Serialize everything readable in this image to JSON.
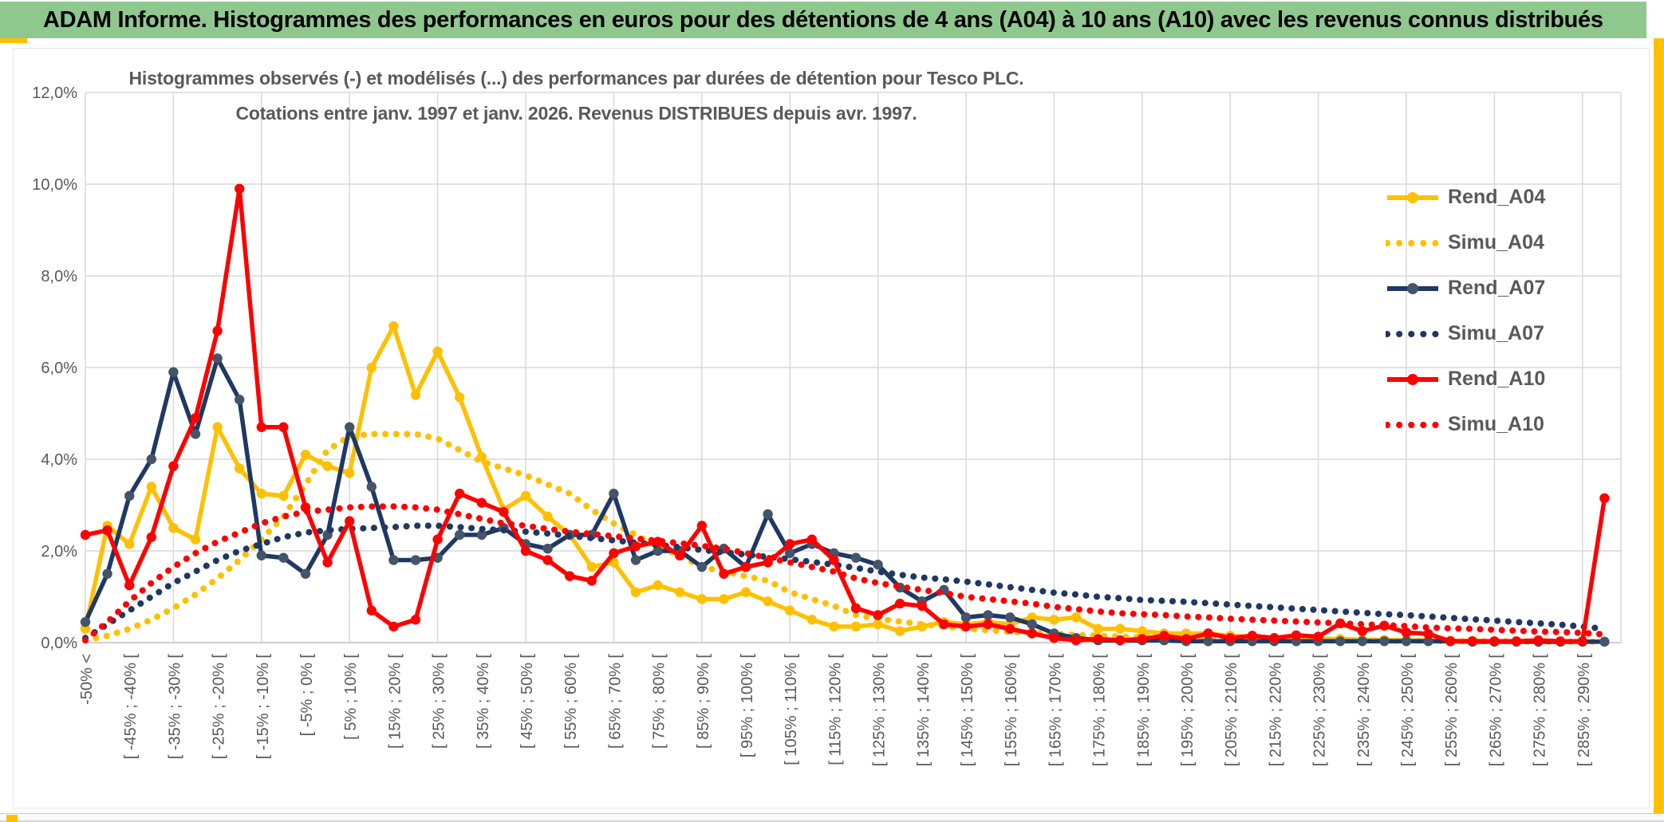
{
  "window": {
    "title_bar": "ADAM Informe. Histogrammes des performances en euros pour des détentions de 4 ans (A04) à 10 ans (A10) avec les revenus connus distribués",
    "title_bar_color": "#8FC88F",
    "accent_color": "#FFC000"
  },
  "chart": {
    "title_line1": "Histogrammes observés (-) et modélisés (...) des performances par durées de détention pour Tesco PLC.",
    "title_line2": "Cotations entre janv. 1997 et janv. 2026. Revenus DISTRIBUES depuis avr. 1997.",
    "text_color": "#595959"
  },
  "chart_data": {
    "type": "line",
    "title": "Histogrammes observés (-) et modélisés (...) des performances par durées de détention pour Tesco PLC. Cotations entre janv. 1997 et janv. 2026. Revenus DISTRIBUES depuis avr. 1997.",
    "ylabel": "",
    "xlabel": "",
    "ylim": [
      0,
      12
    ],
    "grid": true,
    "legend_position": "right",
    "y_tick_labels": [
      "12,0%",
      "10,0%",
      "8,0%",
      "6,0%",
      "4,0%",
      "2,0%",
      "0,0%"
    ],
    "y_tick_values": [
      12,
      10,
      8,
      6,
      4,
      2,
      0
    ],
    "x_bin_count": 70,
    "x_tick_labels_every_other_bin": [
      "-50% <",
      "[ -45% ; -40% [",
      "[ -35% ; -30% [",
      "[ -25% ; -20% [",
      "[ -15% ; -10% [",
      "[ -5% ; 0% [",
      "[ 5% ; 10% [",
      "[ 15% ; 20% [",
      "[ 25% ; 30% [",
      "[ 35% ; 40% [",
      "[ 45% ; 50% [",
      "[ 55% ; 60% [",
      "[ 65% ; 70% [",
      "[ 75% ; 80% [",
      "[ 85% ; 90% [",
      "[ 95% ; 100% [",
      "[ 105% ; 110% [",
      "[ 115% ; 120% [",
      "[ 125% ; 130% [",
      "[ 135% ; 140% [",
      "[ 145% ; 150% [",
      "[ 155% ; 160% [",
      "[ 165% ; 170% [",
      "[ 175% ; 180% [",
      "[ 185% ; 190% [",
      "[ 195% ; 200% [",
      "[ 205% ; 210% [",
      "[ 215% ; 220% [",
      "[ 225% ; 230% [",
      "[ 235% ; 240% [",
      "[ 245% ; 250% [",
      "[ 255% ; 260% [",
      "[ 265% ; 270% [",
      "[ 275% ; 280% [",
      "[ 285% ; 290% ["
    ],
    "series": [
      {
        "name": "Rend_A04",
        "style": "solid",
        "color": "#FFC000",
        "marker_color": "#FFC000",
        "values": [
          0.3,
          2.55,
          2.15,
          3.4,
          2.5,
          2.25,
          4.7,
          3.8,
          3.25,
          3.2,
          4.1,
          3.85,
          3.7,
          6.0,
          6.9,
          5.4,
          6.35,
          5.35,
          4.05,
          2.9,
          3.2,
          2.75,
          2.35,
          1.65,
          1.75,
          1.1,
          1.25,
          1.1,
          0.95,
          0.95,
          1.1,
          0.9,
          0.7,
          0.5,
          0.35,
          0.35,
          0.4,
          0.25,
          0.35,
          0.45,
          0.4,
          0.45,
          0.4,
          0.55,
          0.5,
          0.55,
          0.3,
          0.3,
          0.25,
          0.2,
          0.2,
          0.2,
          0.15,
          0.12,
          0.1,
          0.1,
          0.08,
          0.08,
          0.06,
          0.06,
          0.05,
          0.05,
          0.04,
          0.04,
          0.03,
          0.03,
          0.03,
          0.02,
          0.02,
          0.02
        ]
      },
      {
        "name": "Simu_A04",
        "style": "dotted",
        "color": "#FFC000",
        "values": [
          0.05,
          0.15,
          0.3,
          0.5,
          0.75,
          1.05,
          1.4,
          1.8,
          2.25,
          2.75,
          3.45,
          4.2,
          4.5,
          4.55,
          4.55,
          4.55,
          4.45,
          4.2,
          3.95,
          3.8,
          3.65,
          3.45,
          3.25,
          2.9,
          2.6,
          2.35,
          2.1,
          1.9,
          1.65,
          1.55,
          1.45,
          1.35,
          1.1,
          0.95,
          0.8,
          0.6,
          0.52,
          0.46,
          0.4,
          0.35,
          0.3,
          0.27,
          0.24,
          0.21,
          0.19,
          0.17,
          0.15,
          0.13,
          0.12,
          0.11,
          0.1,
          0.09,
          0.08,
          0.07,
          0.07,
          0.06,
          0.06,
          0.05,
          0.05,
          0.04,
          0.04,
          0.04,
          0.03,
          0.03,
          0.03,
          0.03,
          0.02,
          0.02,
          0.02,
          0.02
        ]
      },
      {
        "name": "Rend_A07",
        "style": "solid",
        "color": "#1F3864",
        "marker_color": "#44546A",
        "values": [
          0.45,
          1.5,
          3.2,
          4.0,
          5.9,
          4.55,
          6.2,
          5.3,
          1.9,
          1.85,
          1.5,
          2.35,
          4.7,
          3.4,
          1.8,
          1.8,
          1.85,
          2.35,
          2.35,
          2.5,
          2.15,
          2.05,
          2.35,
          2.35,
          3.25,
          1.8,
          2.0,
          2.0,
          1.65,
          2.05,
          1.65,
          2.8,
          1.95,
          2.15,
          1.95,
          1.85,
          1.7,
          1.2,
          0.9,
          1.15,
          0.55,
          0.6,
          0.55,
          0.4,
          0.2,
          0.1,
          0.05,
          0.05,
          0.05,
          0.05,
          0.03,
          0.03,
          0.03,
          0.03,
          0.03,
          0.03,
          0.03,
          0.03,
          0.03,
          0.03,
          0.03,
          0.03,
          0.03,
          0.02,
          0.02,
          0.02,
          0.02,
          0.02,
          0.02,
          0.02
        ]
      },
      {
        "name": "Simu_A07",
        "style": "dotted",
        "color": "#1F3864",
        "values": [
          0.1,
          0.4,
          0.7,
          1.0,
          1.3,
          1.55,
          1.8,
          2.0,
          2.15,
          2.3,
          2.4,
          2.45,
          2.48,
          2.5,
          2.52,
          2.55,
          2.55,
          2.52,
          2.48,
          2.45,
          2.42,
          2.38,
          2.33,
          2.28,
          2.23,
          2.18,
          2.13,
          2.08,
          2.02,
          1.97,
          1.92,
          1.87,
          1.82,
          1.76,
          1.7,
          1.63,
          1.55,
          1.48,
          1.42,
          1.38,
          1.33,
          1.27,
          1.21,
          1.15,
          1.09,
          1.05,
          1.0,
          0.97,
          0.93,
          0.91,
          0.89,
          0.86,
          0.83,
          0.8,
          0.77,
          0.74,
          0.71,
          0.68,
          0.65,
          0.62,
          0.6,
          0.57,
          0.54,
          0.51,
          0.48,
          0.45,
          0.42,
          0.39,
          0.35,
          0.3
        ]
      },
      {
        "name": "Rend_A10",
        "style": "solid",
        "color": "#FF0000",
        "marker_color": "#FF0000",
        "values": [
          2.35,
          2.45,
          1.25,
          2.3,
          3.85,
          4.9,
          6.8,
          9.9,
          4.7,
          4.7,
          2.95,
          1.75,
          2.65,
          0.7,
          0.35,
          0.5,
          2.25,
          3.25,
          3.05,
          2.85,
          2.0,
          1.8,
          1.45,
          1.35,
          1.95,
          2.1,
          2.2,
          1.9,
          2.55,
          1.5,
          1.65,
          1.75,
          2.15,
          2.25,
          1.8,
          0.75,
          0.6,
          0.85,
          0.8,
          0.4,
          0.35,
          0.4,
          0.3,
          0.2,
          0.1,
          0.05,
          0.08,
          0.05,
          0.08,
          0.15,
          0.08,
          0.2,
          0.1,
          0.15,
          0.1,
          0.16,
          0.13,
          0.42,
          0.25,
          0.37,
          0.22,
          0.19,
          0.03,
          0.03,
          0.03,
          0.03,
          0.05,
          0.03,
          0.03,
          3.15
        ]
      },
      {
        "name": "Simu_A10",
        "style": "dotted",
        "color": "#FF0000",
        "values": [
          0.05,
          0.45,
          0.9,
          1.3,
          1.65,
          1.95,
          2.2,
          2.4,
          2.6,
          2.75,
          2.85,
          2.9,
          2.95,
          2.97,
          2.97,
          2.95,
          2.9,
          2.8,
          2.7,
          2.6,
          2.55,
          2.48,
          2.42,
          2.37,
          2.32,
          2.27,
          2.22,
          2.17,
          2.11,
          2.05,
          1.95,
          1.85,
          1.75,
          1.65,
          1.55,
          1.4,
          1.3,
          1.22,
          1.15,
          1.08,
          1.0,
          0.95,
          0.9,
          0.85,
          0.78,
          0.73,
          0.68,
          0.64,
          0.62,
          0.6,
          0.57,
          0.55,
          0.52,
          0.5,
          0.48,
          0.46,
          0.44,
          0.42,
          0.4,
          0.38,
          0.36,
          0.33,
          0.31,
          0.3,
          0.28,
          0.26,
          0.24,
          0.23,
          0.21,
          0.18
        ]
      }
    ],
    "legend_entries": [
      "Rend_A04",
      "Simu_A04",
      "Rend_A07",
      "Simu_A07",
      "Rend_A10",
      "Simu_A10"
    ],
    "gridline_color": "#D9D9D9",
    "axis_color": "#BFBFBF"
  }
}
